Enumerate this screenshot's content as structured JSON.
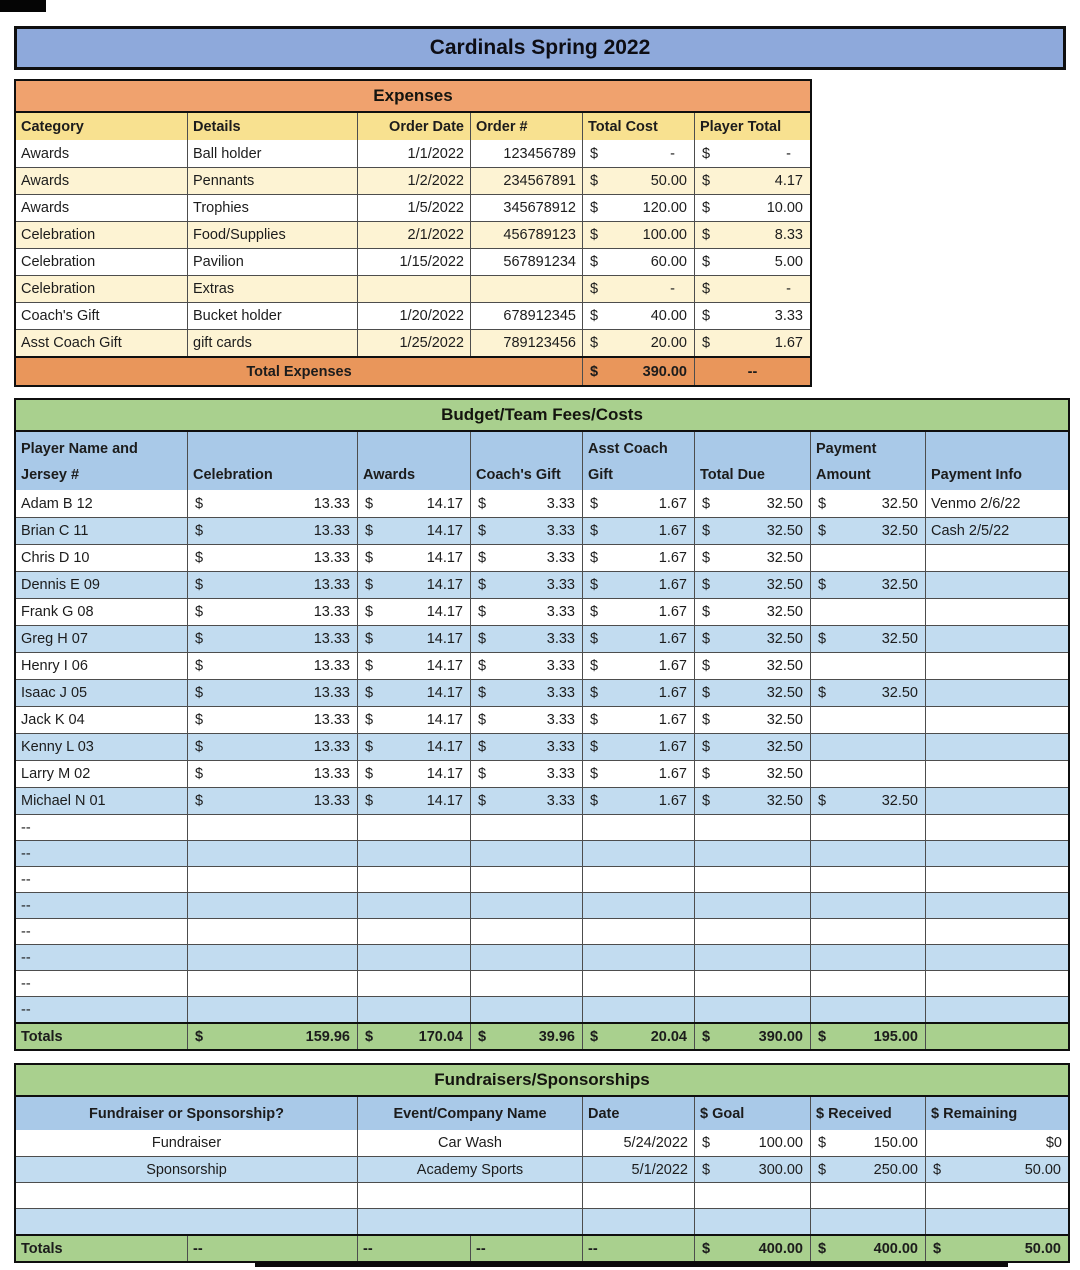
{
  "title": "Cardinals Spring 2022",
  "currency_symbol": "$",
  "colors": {
    "title_bar": "#8EA9DB",
    "expenses_banner": "#F0A26E",
    "expenses_header": "#F8E190",
    "expenses_alt_row": "#FDF3D3",
    "expenses_total_row": "#E9965B",
    "section_green": "#A9D08E",
    "table_header_blue": "#A9C9E8",
    "alt_row_blue": "#C2DCF0",
    "text": "#1C1C1C"
  },
  "expenses": {
    "section_title": "Expenses",
    "headers": [
      "Category",
      "Details",
      "Order Date",
      "Order #",
      "Total Cost",
      "Player Total"
    ],
    "rows": [
      {
        "category": "Awards",
        "details": "Ball holder",
        "order_date": "1/1/2022",
        "order_num": "123456789",
        "total_cost": "-",
        "player_total": "-"
      },
      {
        "category": "Awards",
        "details": "Pennants",
        "order_date": "1/2/2022",
        "order_num": "234567891",
        "total_cost": "50.00",
        "player_total": "4.17"
      },
      {
        "category": "Awards",
        "details": "Trophies",
        "order_date": "1/5/2022",
        "order_num": "345678912",
        "total_cost": "120.00",
        "player_total": "10.00"
      },
      {
        "category": "Celebration",
        "details": "Food/Supplies",
        "order_date": "2/1/2022",
        "order_num": "456789123",
        "total_cost": "100.00",
        "player_total": "8.33"
      },
      {
        "category": "Celebration",
        "details": "Pavilion",
        "order_date": "1/15/2022",
        "order_num": "567891234",
        "total_cost": "60.00",
        "player_total": "5.00"
      },
      {
        "category": "Celebration",
        "details": "Extras",
        "order_date": "",
        "order_num": "",
        "total_cost": "-",
        "player_total": "-"
      },
      {
        "category": "Coach's Gift",
        "details": "Bucket holder",
        "order_date": "1/20/2022",
        "order_num": "678912345",
        "total_cost": "40.00",
        "player_total": "3.33"
      },
      {
        "category": "Asst Coach Gift",
        "details": "gift cards",
        "order_date": "1/25/2022",
        "order_num": "789123456",
        "total_cost": "20.00",
        "player_total": "1.67"
      }
    ],
    "totals": {
      "label": "Total Expenses",
      "total_cost": "390.00",
      "player_total": "--"
    }
  },
  "budget": {
    "section_title": "Budget/Team Fees/Costs",
    "headers": [
      "Player Name and Jersey #",
      "Celebration",
      "Awards",
      "Coach's Gift",
      "Asst Coach Gift",
      "Total Due",
      "Payment Amount",
      "Payment Info"
    ],
    "rows": [
      {
        "name": "Adam B 12",
        "celebration": "13.33",
        "awards": "14.17",
        "coach": "3.33",
        "asst": "1.67",
        "due": "32.50",
        "paid": "32.50",
        "info": "Venmo 2/6/22"
      },
      {
        "name": "Brian C 11",
        "celebration": "13.33",
        "awards": "14.17",
        "coach": "3.33",
        "asst": "1.67",
        "due": "32.50",
        "paid": "32.50",
        "info": "Cash 2/5/22"
      },
      {
        "name": "Chris D 10",
        "celebration": "13.33",
        "awards": "14.17",
        "coach": "3.33",
        "asst": "1.67",
        "due": "32.50",
        "paid": "",
        "info": ""
      },
      {
        "name": "Dennis E 09",
        "celebration": "13.33",
        "awards": "14.17",
        "coach": "3.33",
        "asst": "1.67",
        "due": "32.50",
        "paid": "32.50",
        "info": ""
      },
      {
        "name": "Frank G 08",
        "celebration": "13.33",
        "awards": "14.17",
        "coach": "3.33",
        "asst": "1.67",
        "due": "32.50",
        "paid": "",
        "info": ""
      },
      {
        "name": "Greg H 07",
        "celebration": "13.33",
        "awards": "14.17",
        "coach": "3.33",
        "asst": "1.67",
        "due": "32.50",
        "paid": "32.50",
        "info": ""
      },
      {
        "name": "Henry I 06",
        "celebration": "13.33",
        "awards": "14.17",
        "coach": "3.33",
        "asst": "1.67",
        "due": "32.50",
        "paid": "",
        "info": ""
      },
      {
        "name": "Isaac J 05",
        "celebration": "13.33",
        "awards": "14.17",
        "coach": "3.33",
        "asst": "1.67",
        "due": "32.50",
        "paid": "32.50",
        "info": ""
      },
      {
        "name": "Jack K 04",
        "celebration": "13.33",
        "awards": "14.17",
        "coach": "3.33",
        "asst": "1.67",
        "due": "32.50",
        "paid": "",
        "info": ""
      },
      {
        "name": "Kenny L 03",
        "celebration": "13.33",
        "awards": "14.17",
        "coach": "3.33",
        "asst": "1.67",
        "due": "32.50",
        "paid": "",
        "info": ""
      },
      {
        "name": "Larry M 02",
        "celebration": "13.33",
        "awards": "14.17",
        "coach": "3.33",
        "asst": "1.67",
        "due": "32.50",
        "paid": "",
        "info": ""
      },
      {
        "name": "Michael N 01",
        "celebration": "13.33",
        "awards": "14.17",
        "coach": "3.33",
        "asst": "1.67",
        "due": "32.50",
        "paid": "32.50",
        "info": ""
      },
      {
        "name": "--",
        "celebration": "",
        "awards": "",
        "coach": "",
        "asst": "",
        "due": "",
        "paid": "",
        "info": ""
      },
      {
        "name": "--",
        "celebration": "",
        "awards": "",
        "coach": "",
        "asst": "",
        "due": "",
        "paid": "",
        "info": ""
      },
      {
        "name": "--",
        "celebration": "",
        "awards": "",
        "coach": "",
        "asst": "",
        "due": "",
        "paid": "",
        "info": ""
      },
      {
        "name": "--",
        "celebration": "",
        "awards": "",
        "coach": "",
        "asst": "",
        "due": "",
        "paid": "",
        "info": ""
      },
      {
        "name": "--",
        "celebration": "",
        "awards": "",
        "coach": "",
        "asst": "",
        "due": "",
        "paid": "",
        "info": ""
      },
      {
        "name": "--",
        "celebration": "",
        "awards": "",
        "coach": "",
        "asst": "",
        "due": "",
        "paid": "",
        "info": ""
      },
      {
        "name": "--",
        "celebration": "",
        "awards": "",
        "coach": "",
        "asst": "",
        "due": "",
        "paid": "",
        "info": ""
      },
      {
        "name": "--",
        "celebration": "",
        "awards": "",
        "coach": "",
        "asst": "",
        "due": "",
        "paid": "",
        "info": ""
      }
    ],
    "totals": {
      "label": "Totals",
      "celebration": "159.96",
      "awards": "170.04",
      "coach": "39.96",
      "asst": "20.04",
      "due": "390.00",
      "paid": "195.00",
      "info": ""
    }
  },
  "fundraisers": {
    "section_title": "Fundraisers/Sponsorships",
    "headers": [
      "Fundraiser or Sponsorship?",
      "Event/Company Name",
      "Date",
      "$ Goal",
      "$ Received",
      "$ Remaining"
    ],
    "rows": [
      {
        "type": "Fundraiser",
        "event": "Car Wash",
        "date": "5/24/2022",
        "goal": "100.00",
        "received": "150.00",
        "remaining": "$0"
      },
      {
        "type": "Sponsorship",
        "event": "Academy Sports",
        "date": "5/1/2022",
        "goal": "300.00",
        "received": "250.00",
        "remaining": "50.00"
      },
      {
        "type": "",
        "event": "",
        "date": "",
        "goal": "",
        "received": "",
        "remaining": ""
      },
      {
        "type": "",
        "event": "",
        "date": "",
        "goal": "",
        "received": "",
        "remaining": ""
      }
    ],
    "totals": {
      "label": "Totals",
      "dashes": [
        "--",
        "--",
        "--",
        "--"
      ],
      "goal": "400.00",
      "received": "400.00",
      "remaining": "50.00"
    }
  }
}
